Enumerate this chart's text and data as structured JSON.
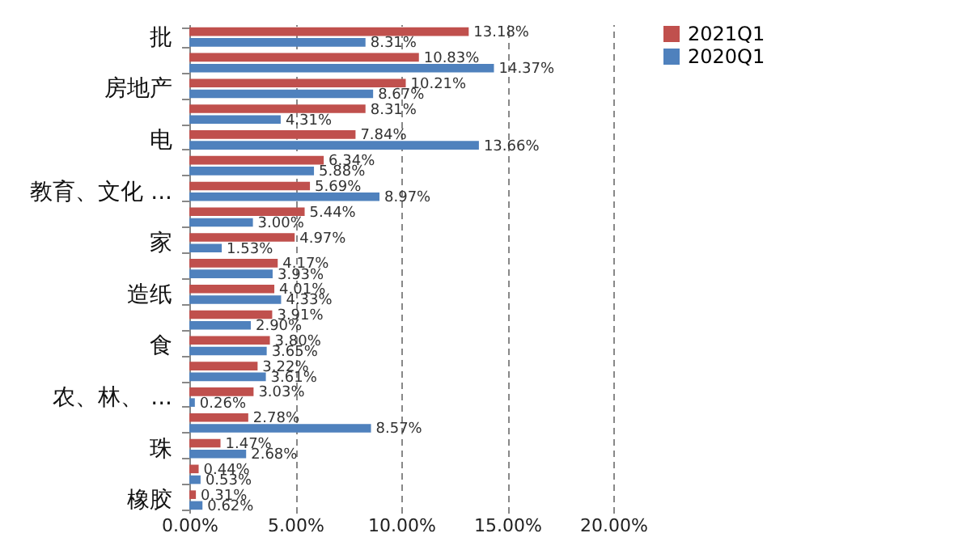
{
  "chart_data": {
    "type": "bar",
    "orientation": "horizontal",
    "categories": [
      "批",
      null,
      "房地产",
      null,
      "电",
      null,
      "教育、文化 ...",
      null,
      "家",
      null,
      "造纸",
      null,
      "食",
      null,
      "农、林、 ...",
      null,
      "珠",
      null,
      "橡胶"
    ],
    "series": [
      {
        "name": "2021Q1",
        "color": "#c0504d",
        "values": [
          13.18,
          10.83,
          10.21,
          8.31,
          7.84,
          6.34,
          5.69,
          5.44,
          4.97,
          4.17,
          4.01,
          3.91,
          3.8,
          3.22,
          3.03,
          2.78,
          1.47,
          0.44,
          0.31
        ],
        "value_labels": [
          "13.18%",
          "10.83%",
          "10.21%",
          "8.31%",
          "7.84%",
          "6.34%",
          "5.69%",
          "5.44%",
          "4.97%",
          "4.17%",
          "4.01%",
          "3.91%",
          "3.80%",
          "3.22%",
          "3.03%",
          "2.78%",
          "1.47%",
          "0.44%",
          "0.31%"
        ]
      },
      {
        "name": "2020Q1",
        "color": "#4f81bd",
        "values": [
          8.31,
          14.37,
          8.67,
          4.31,
          13.66,
          5.88,
          8.97,
          3.0,
          1.53,
          3.93,
          4.33,
          2.9,
          3.65,
          3.61,
          0.26,
          8.57,
          2.68,
          0.53,
          0.62
        ],
        "value_labels": [
          "8.31%",
          "14.37%",
          "8.67%",
          "4.31%",
          "13.66%",
          "5.88%",
          "8.97%",
          "3.00%",
          "1.53%",
          "3.93%",
          "4.33%",
          "2.90%",
          "3.65%",
          "3.61%",
          "0.26%",
          "8.57%",
          "2.68%",
          "0.53%",
          "0.62%"
        ]
      }
    ],
    "xlim": [
      0,
      20
    ],
    "xticks": [
      {
        "value": 0,
        "label": "0.00%"
      },
      {
        "value": 5,
        "label": "5.00%"
      },
      {
        "value": 10,
        "label": "10.00%"
      },
      {
        "value": 15,
        "label": "15.00%"
      },
      {
        "value": 20,
        "label": "20.00%"
      }
    ],
    "grid": "x",
    "legend": "right"
  }
}
